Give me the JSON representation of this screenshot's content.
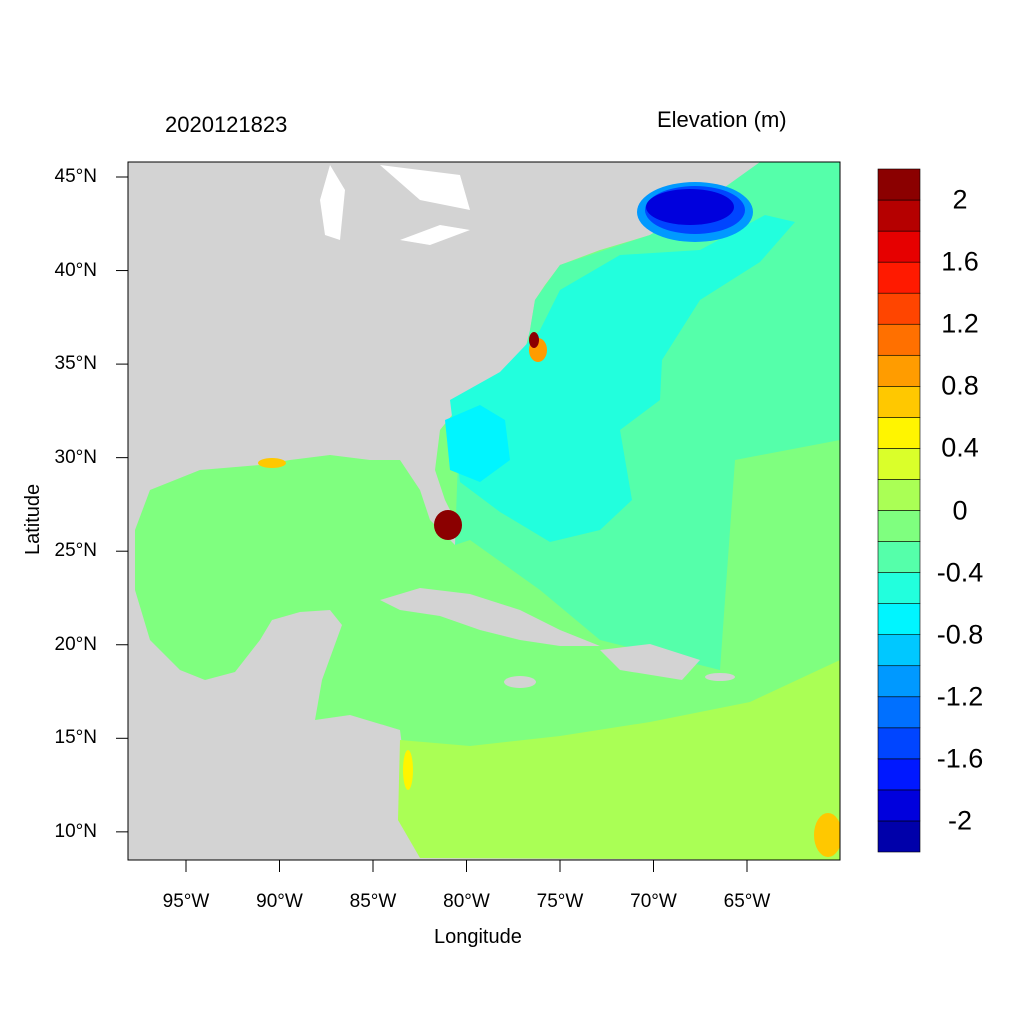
{
  "title_left": "2020121823",
  "title_right": "Elevation (m)",
  "x_axis": {
    "label": "Longitude",
    "range_deg_east": [
      -98.1,
      -60.0
    ],
    "ticks": [
      {
        "value": -95,
        "label": "95°W"
      },
      {
        "value": -90,
        "label": "90°W"
      },
      {
        "value": -85,
        "label": "85°W"
      },
      {
        "value": -80,
        "label": "80°W"
      },
      {
        "value": -75,
        "label": "75°W"
      },
      {
        "value": -70,
        "label": "70°W"
      },
      {
        "value": -65,
        "label": "65°W"
      }
    ]
  },
  "y_axis": {
    "label": "Latitude",
    "range_deg_north": [
      8.5,
      45.8
    ],
    "ticks": [
      {
        "value": 45,
        "label": "45°N"
      },
      {
        "value": 40,
        "label": "40°N"
      },
      {
        "value": 35,
        "label": "35°N"
      },
      {
        "value": 30,
        "label": "30°N"
      },
      {
        "value": 25,
        "label": "25°N"
      },
      {
        "value": 20,
        "label": "20°N"
      },
      {
        "value": 15,
        "label": "15°N"
      },
      {
        "value": 10,
        "label": "10°N"
      }
    ]
  },
  "colorbar": {
    "levels_min": -2.2,
    "levels_step": 0.2,
    "colors_bottom_to_top": [
      "#0000aa",
      "#0000dd",
      "#0018ff",
      "#0045ff",
      "#0070ff",
      "#0099ff",
      "#00c8ff",
      "#00f5ff",
      "#22ffdd",
      "#55ffaa",
      "#7fff7f",
      "#aaff55",
      "#daff2a",
      "#fff500",
      "#ffc800",
      "#ff9c00",
      "#ff7000",
      "#ff4500",
      "#ff1a00",
      "#e60000",
      "#b50000",
      "#8b0000"
    ],
    "labels": [
      {
        "value": 2,
        "label": "2"
      },
      {
        "value": 1.6,
        "label": "1.6"
      },
      {
        "value": 1.2,
        "label": "1.2"
      },
      {
        "value": 0.8,
        "label": "0.8"
      },
      {
        "value": 0.4,
        "label": "0.4"
      },
      {
        "value": 0,
        "label": "0"
      },
      {
        "value": -0.4,
        "label": "-0.4"
      },
      {
        "value": -0.8,
        "label": "-0.8"
      },
      {
        "value": -1.2,
        "label": "-1.2"
      },
      {
        "value": -1.6,
        "label": "-1.6"
      },
      {
        "value": -2,
        "label": "-2"
      }
    ]
  },
  "land_color": "#d3d3d3"
}
